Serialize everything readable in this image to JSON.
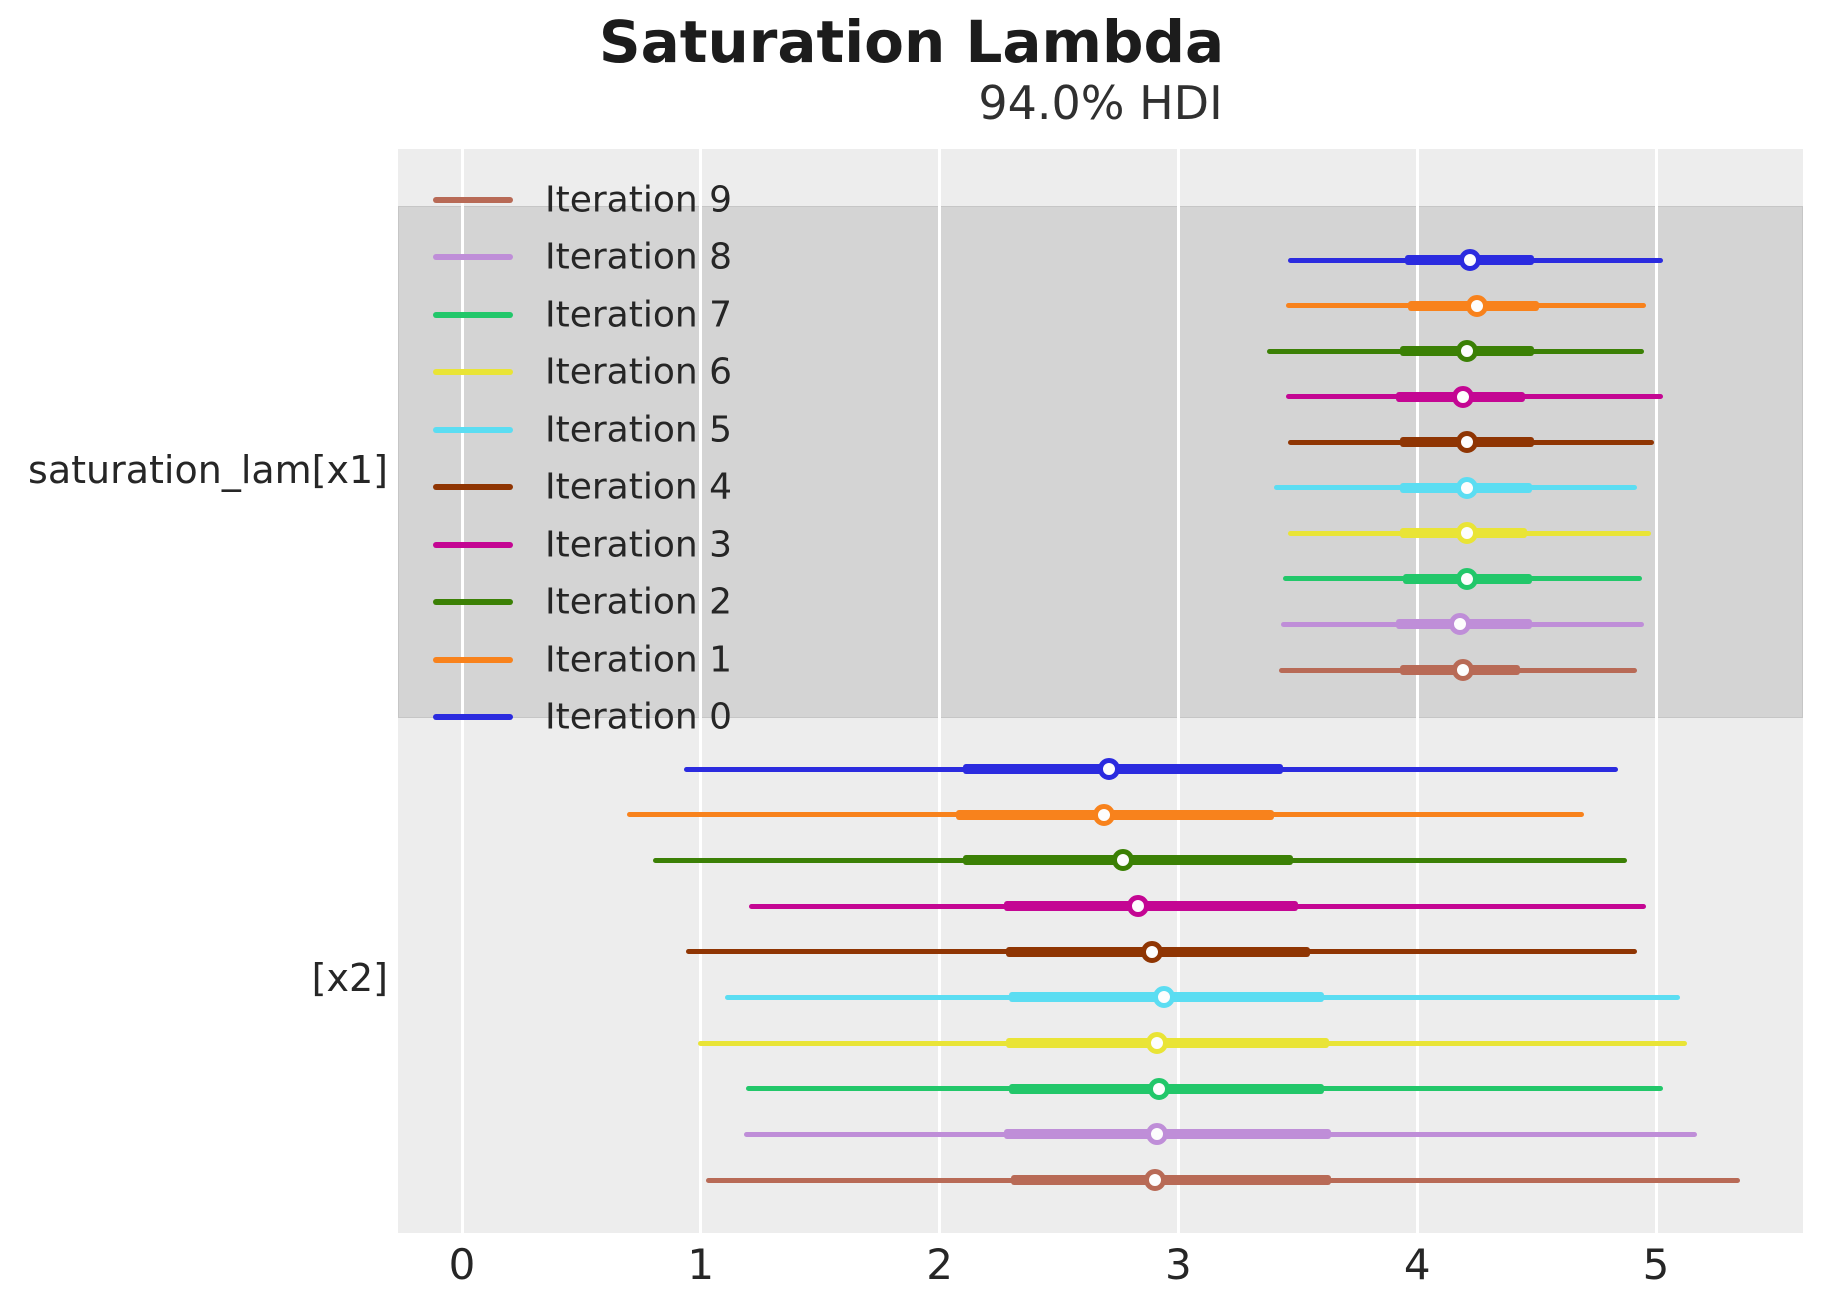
{
  "title": "Saturation Lambda",
  "subtitle": "94.0% HDI",
  "y_axis_labels": [
    "saturation_lam[x1]",
    "[x2]"
  ],
  "x_axis": {
    "tick_labels": [
      "0",
      "1",
      "2",
      "3",
      "4",
      "5"
    ]
  },
  "legend": {
    "items": [
      {
        "label": "Iteration 9",
        "color": "#b86a56"
      },
      {
        "label": "Iteration 8",
        "color": "#bf8ed8"
      },
      {
        "label": "Iteration 7",
        "color": "#22c76a"
      },
      {
        "label": "Iteration 6",
        "color": "#e9e436"
      },
      {
        "label": "Iteration 5",
        "color": "#5bddf2"
      },
      {
        "label": "Iteration 4",
        "color": "#8f3503"
      },
      {
        "label": "Iteration 3",
        "color": "#c40693"
      },
      {
        "label": "Iteration 2",
        "color": "#3b8005"
      },
      {
        "label": "Iteration 1",
        "color": "#f8821c"
      },
      {
        "label": "Iteration 0",
        "color": "#2b2bdf"
      }
    ]
  },
  "colors": {
    "plot_background": "#ededed",
    "highlight_band": "#d4d4d4",
    "gridline": "#ffffff",
    "text": "#262626",
    "median_dot_fill": "#fdfdfd"
  },
  "chart_data": {
    "type": "forest_plot",
    "title": "Saturation Lambda",
    "credible_interval_label": "94.0% HDI",
    "xlim": [
      -0.27,
      5.61
    ],
    "x_ticks": [
      0,
      1,
      2,
      3,
      4,
      5
    ],
    "grid": "vertical white gridlines on gray background",
    "legend_position": "upper left",
    "groups": [
      {
        "parameter": "saturation_lam[x1]",
        "rows": [
          {
            "iteration": "Iteration 0",
            "color": "#2b2bdf",
            "hdi_low": 3.46,
            "hdi_high": 5.03,
            "quartile_low": 3.95,
            "quartile_high": 4.49,
            "median": 4.22
          },
          {
            "iteration": "Iteration 1",
            "color": "#f8821c",
            "hdi_low": 3.45,
            "hdi_high": 4.96,
            "quartile_low": 3.96,
            "quartile_high": 4.51,
            "median": 4.25
          },
          {
            "iteration": "Iteration 2",
            "color": "#3b8005",
            "hdi_low": 3.37,
            "hdi_high": 4.95,
            "quartile_low": 3.93,
            "quartile_high": 4.49,
            "median": 4.21
          },
          {
            "iteration": "Iteration 3",
            "color": "#c40693",
            "hdi_low": 3.45,
            "hdi_high": 5.03,
            "quartile_low": 3.91,
            "quartile_high": 4.45,
            "median": 4.19
          },
          {
            "iteration": "Iteration 4",
            "color": "#8f3503",
            "hdi_low": 3.46,
            "hdi_high": 4.99,
            "quartile_low": 3.93,
            "quartile_high": 4.49,
            "median": 4.21
          },
          {
            "iteration": "Iteration 5",
            "color": "#5bddf2",
            "hdi_low": 3.4,
            "hdi_high": 4.92,
            "quartile_low": 3.93,
            "quartile_high": 4.48,
            "median": 4.21
          },
          {
            "iteration": "Iteration 6",
            "color": "#e9e436",
            "hdi_low": 3.46,
            "hdi_high": 4.98,
            "quartile_low": 3.93,
            "quartile_high": 4.46,
            "median": 4.21
          },
          {
            "iteration": "Iteration 7",
            "color": "#22c76a",
            "hdi_low": 3.44,
            "hdi_high": 4.94,
            "quartile_low": 3.94,
            "quartile_high": 4.48,
            "median": 4.21
          },
          {
            "iteration": "Iteration 8",
            "color": "#bf8ed8",
            "hdi_low": 3.43,
            "hdi_high": 4.95,
            "quartile_low": 3.91,
            "quartile_high": 4.48,
            "median": 4.18
          },
          {
            "iteration": "Iteration 9",
            "color": "#b86a56",
            "hdi_low": 3.42,
            "hdi_high": 4.92,
            "quartile_low": 3.93,
            "quartile_high": 4.43,
            "median": 4.19
          }
        ]
      },
      {
        "parameter": "[x2]",
        "rows": [
          {
            "iteration": "Iteration 0",
            "color": "#2b2bdf",
            "hdi_low": 0.93,
            "hdi_high": 4.84,
            "quartile_low": 2.1,
            "quartile_high": 3.44,
            "median": 2.71
          },
          {
            "iteration": "Iteration 1",
            "color": "#f8821c",
            "hdi_low": 0.69,
            "hdi_high": 4.7,
            "quartile_low": 2.07,
            "quartile_high": 3.4,
            "median": 2.69
          },
          {
            "iteration": "Iteration 2",
            "color": "#3b8005",
            "hdi_low": 0.8,
            "hdi_high": 4.88,
            "quartile_low": 2.1,
            "quartile_high": 3.48,
            "median": 2.77
          },
          {
            "iteration": "Iteration 3",
            "color": "#c40693",
            "hdi_low": 1.2,
            "hdi_high": 4.96,
            "quartile_low": 2.27,
            "quartile_high": 3.5,
            "median": 2.83
          },
          {
            "iteration": "Iteration 4",
            "color": "#8f3503",
            "hdi_low": 0.94,
            "hdi_high": 4.92,
            "quartile_low": 2.28,
            "quartile_high": 3.55,
            "median": 2.89
          },
          {
            "iteration": "Iteration 5",
            "color": "#5bddf2",
            "hdi_low": 1.1,
            "hdi_high": 5.1,
            "quartile_low": 2.29,
            "quartile_high": 3.61,
            "median": 2.94
          },
          {
            "iteration": "Iteration 6",
            "color": "#e9e436",
            "hdi_low": 0.99,
            "hdi_high": 5.13,
            "quartile_low": 2.28,
            "quartile_high": 3.63,
            "median": 2.91
          },
          {
            "iteration": "Iteration 7",
            "color": "#22c76a",
            "hdi_low": 1.19,
            "hdi_high": 5.03,
            "quartile_low": 2.29,
            "quartile_high": 3.61,
            "median": 2.92
          },
          {
            "iteration": "Iteration 8",
            "color": "#bf8ed8",
            "hdi_low": 1.18,
            "hdi_high": 5.17,
            "quartile_low": 2.27,
            "quartile_high": 3.64,
            "median": 2.91
          },
          {
            "iteration": "Iteration 9",
            "color": "#b86a56",
            "hdi_low": 1.02,
            "hdi_high": 5.35,
            "quartile_low": 2.3,
            "quartile_high": 3.64,
            "median": 2.9
          }
        ]
      }
    ]
  }
}
